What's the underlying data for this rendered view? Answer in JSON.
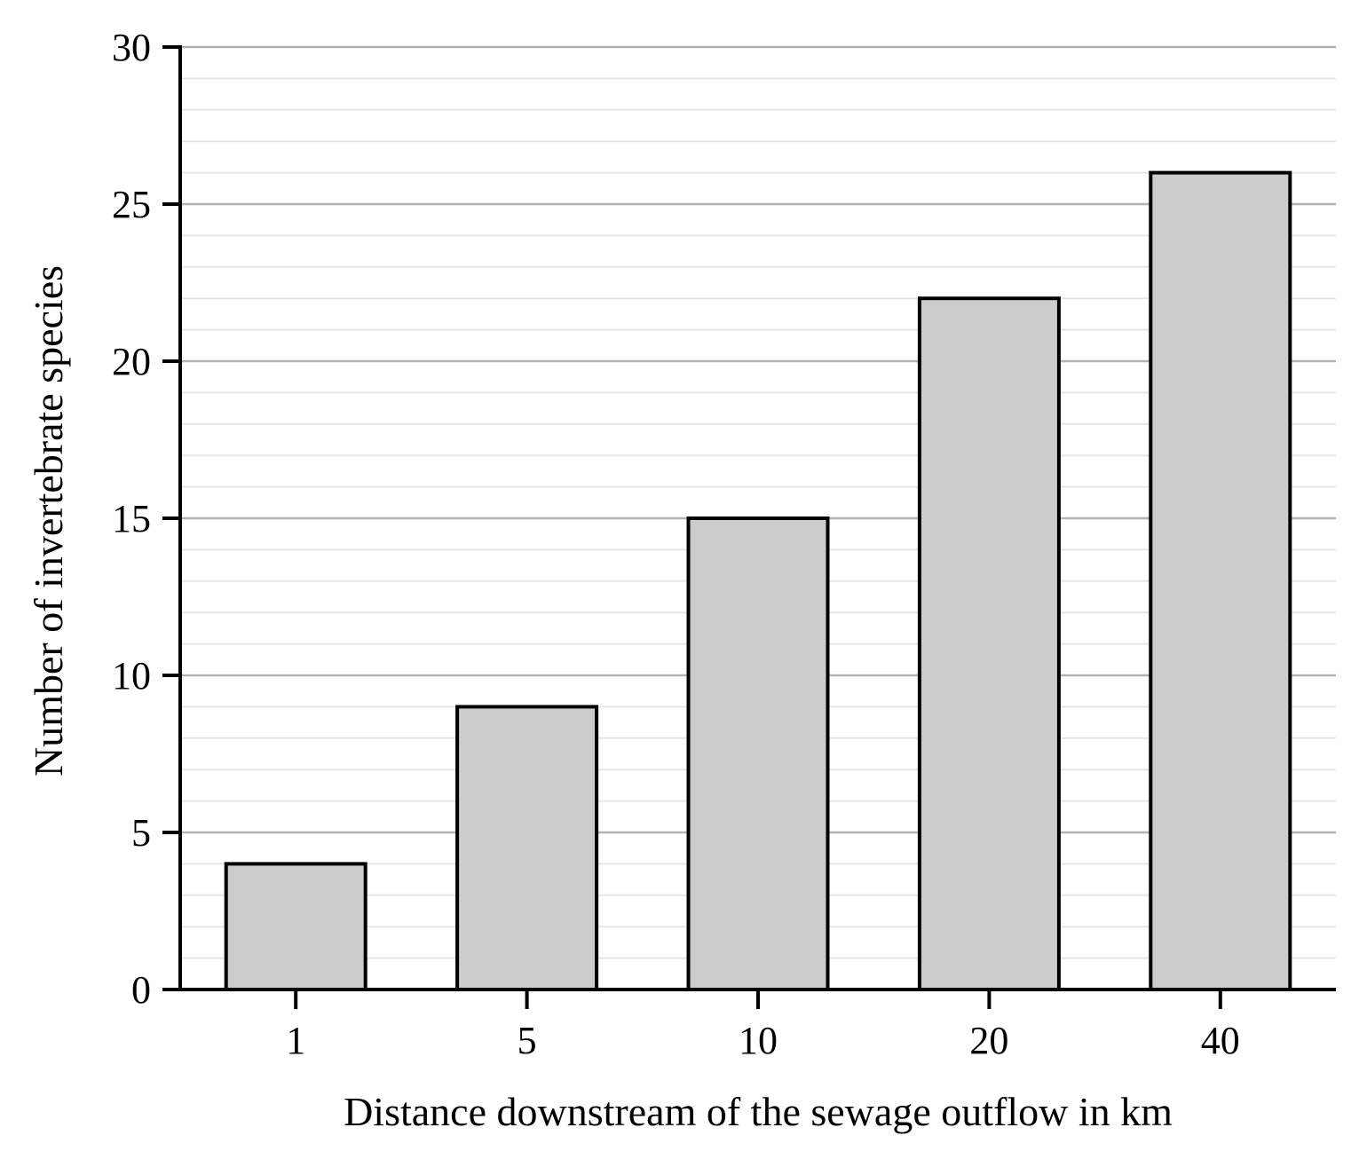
{
  "chart_data": {
    "type": "bar",
    "title": "",
    "xlabel": "Distance downstream of the sewage outflow in km",
    "ylabel": "Number of invertebrate species",
    "categories": [
      "1",
      "5",
      "10",
      "20",
      "40"
    ],
    "values": [
      4,
      9,
      15,
      22,
      26
    ],
    "ylim": [
      0,
      30
    ],
    "yticks": [
      0,
      5,
      10,
      15,
      20,
      25,
      30
    ],
    "minor_step": 1,
    "grid": true,
    "legend": "none",
    "colors": {
      "bar_fill": "#cccccc",
      "bar_stroke": "#000000",
      "major_grid": "#b3b3b3",
      "minor_grid": "#e5e5e5",
      "axis": "#000000"
    }
  }
}
